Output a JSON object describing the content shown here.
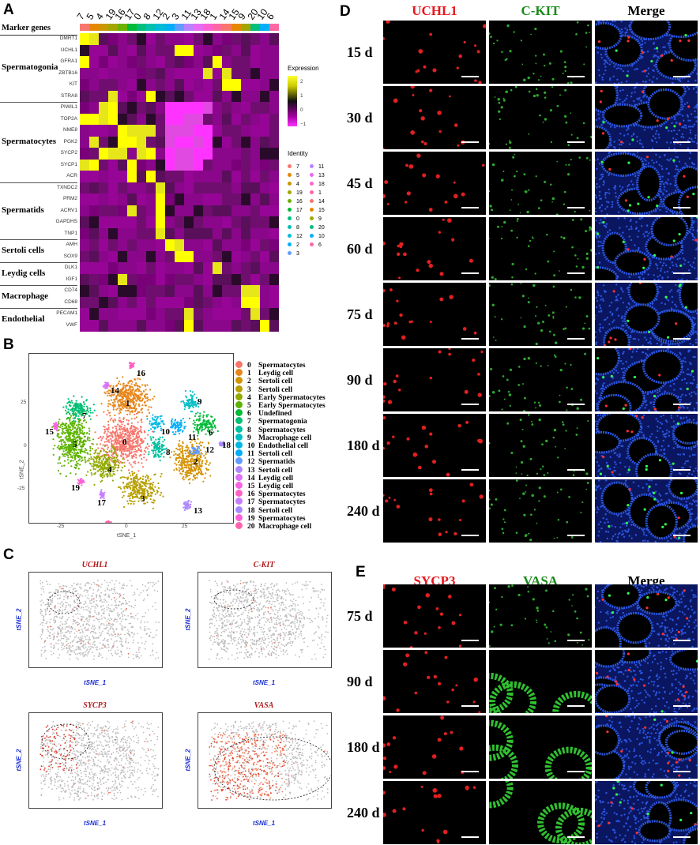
{
  "panels": {
    "a": "A",
    "b": "B",
    "c": "C",
    "d": "D",
    "e": "E"
  },
  "heatmap": {
    "header": "Marker genes",
    "clusters": [
      "7",
      "5",
      "4",
      "19",
      "16",
      "17",
      "0",
      "8",
      "12",
      "2",
      "3",
      "11",
      "13",
      "18",
      "1",
      "14",
      "15",
      "9",
      "20",
      "10",
      "6"
    ],
    "cluster_colors": [
      "#f7776d",
      "#e58700",
      "#c99800",
      "#a3a500",
      "#6bb100",
      "#00ba38",
      "#00bf7d",
      "#00c0af",
      "#00bcd8",
      "#00b0f6",
      "#619cff",
      "#b983ff",
      "#e76bf3",
      "#fd61d1",
      "#ff67a4",
      "#f8766d",
      "#e58700",
      "#a3a500",
      "#00bf7d",
      "#00b0f6",
      "#ff67a4"
    ],
    "genes": [
      "DMRT1",
      "UCHL1",
      "GFRA1",
      "ZBTB16",
      "KIT",
      "STRA8",
      "PIWIL1",
      "TOP2A",
      "NME8",
      "PGK2",
      "SYCP2",
      "SYCP1",
      "ACR",
      "TXNDC2",
      "PRM2",
      "ACRV1",
      "GAPDHS",
      "TNP1",
      "AMH",
      "SOX9",
      "DLK1",
      "IGF1",
      "CD74",
      "CD68",
      "PECAM1",
      "VWF"
    ],
    "groups": [
      {
        "label": "Spermatogonia",
        "start": 0,
        "count": 6
      },
      {
        "label": "Spermatocytes",
        "start": 6,
        "count": 7
      },
      {
        "label": "Spermatids",
        "start": 13,
        "count": 5
      },
      {
        "label": "Sertoli cells",
        "start": 18,
        "count": 2
      },
      {
        "label": "Leydig cells",
        "start": 20,
        "count": 2
      },
      {
        "label": "Macrophage",
        "start": 22,
        "count": 2
      },
      {
        "label": "Endothelial",
        "start": 24,
        "count": 2
      }
    ],
    "expression_title": "Expression",
    "scale_ticks": [
      "2",
      "1",
      "0",
      "−1"
    ],
    "identity_title": "Identity",
    "identity_left": [
      "7",
      "5",
      "4",
      "19",
      "16",
      "17",
      "0",
      "8",
      "12",
      "2",
      "3"
    ],
    "identity_right": [
      "11",
      "13",
      "18",
      "1",
      "14",
      "15",
      "9",
      "20",
      "10",
      "6"
    ]
  },
  "tsne": {
    "xlabel": "tSNE_1",
    "ylabel": "tSNE_2",
    "xticks": [
      "-25",
      "0",
      "25"
    ],
    "yticks": [
      "25",
      "0",
      "-25"
    ],
    "cluster_labels": [
      "0",
      "1",
      "2",
      "3",
      "4",
      "5",
      "6",
      "7",
      "8",
      "9",
      "10",
      "11",
      "12",
      "13",
      "14",
      "15",
      "16",
      "17",
      "18",
      "19",
      "20"
    ],
    "legend": [
      {
        "n": "0",
        "label": "Spermatocytes",
        "color": "#f8766d"
      },
      {
        "n": "1",
        "label": "Leydig cell",
        "color": "#e7861b"
      },
      {
        "n": "2",
        "label": "Sertoli  cell",
        "color": "#d39200"
      },
      {
        "n": "3",
        "label": "Sertoli  cell",
        "color": "#b79f00"
      },
      {
        "n": "4",
        "label": "Early Spermatocytes",
        "color": "#93aa00"
      },
      {
        "n": "5",
        "label": "Early Spermatocytes",
        "color": "#5eb300"
      },
      {
        "n": "6",
        "label": "Undefined",
        "color": "#00ba38"
      },
      {
        "n": "7",
        "label": "Spermatogonia",
        "color": "#00bf74"
      },
      {
        "n": "8",
        "label": "Spermatocytes",
        "color": "#00c19f"
      },
      {
        "n": "9",
        "label": "Macrophage cell",
        "color": "#00bfc4"
      },
      {
        "n": "10",
        "label": "Endothelial cell",
        "color": "#00b9e3"
      },
      {
        "n": "11",
        "label": "Sertoli  cell",
        "color": "#00adfa"
      },
      {
        "n": "12",
        "label": "Spermatids",
        "color": "#619cff"
      },
      {
        "n": "13",
        "label": "Sertoli  cell",
        "color": "#ae87ff"
      },
      {
        "n": "14",
        "label": "Leydig cell",
        "color": "#db72fb"
      },
      {
        "n": "15",
        "label": "Leydig cell",
        "color": "#f564e3"
      },
      {
        "n": "16",
        "label": "Spermatocytes",
        "color": "#ff61c3"
      },
      {
        "n": "17",
        "label": "Spermatocytes",
        "color": "#c77cff"
      },
      {
        "n": "18",
        "label": "Sertoli  cell",
        "color": "#a58aff"
      },
      {
        "n": "19",
        "label": "Spermatocytes",
        "color": "#fb61d7"
      },
      {
        "n": "20",
        "label": "Macrophage cell",
        "color": "#ff65ae"
      }
    ]
  },
  "feature_plots": [
    {
      "title": "UCHL1",
      "xlabel": "tSNE_1",
      "ylabel": "tSNE_2"
    },
    {
      "title": "C-KIT",
      "xlabel": "tSNE_1",
      "ylabel": "tSNE_2"
    },
    {
      "title": "SYCP3",
      "xlabel": "tSNE_1",
      "ylabel": "tSNE_2"
    },
    {
      "title": "VASA",
      "xlabel": "tSNE_1",
      "ylabel": "tSNE_2"
    }
  ],
  "panel_d": {
    "columns": [
      {
        "label": "UCHL1",
        "color": "#e8161c"
      },
      {
        "label": "C-KIT",
        "color": "#1a8a1a"
      },
      {
        "label": "Merge",
        "color": "#000000"
      }
    ],
    "rows": [
      "15 d",
      "30 d",
      "45 d",
      "60 d",
      "75 d",
      "90 d",
      "180 d",
      "240 d"
    ]
  },
  "panel_e": {
    "columns": [
      {
        "label": "SYCP3",
        "color": "#e8161c"
      },
      {
        "label": "VASA",
        "color": "#1a8a1a"
      },
      {
        "label": "Merge",
        "color": "#000000"
      }
    ],
    "rows": [
      "75 d",
      "90 d",
      "180 d",
      "240 d"
    ]
  }
}
